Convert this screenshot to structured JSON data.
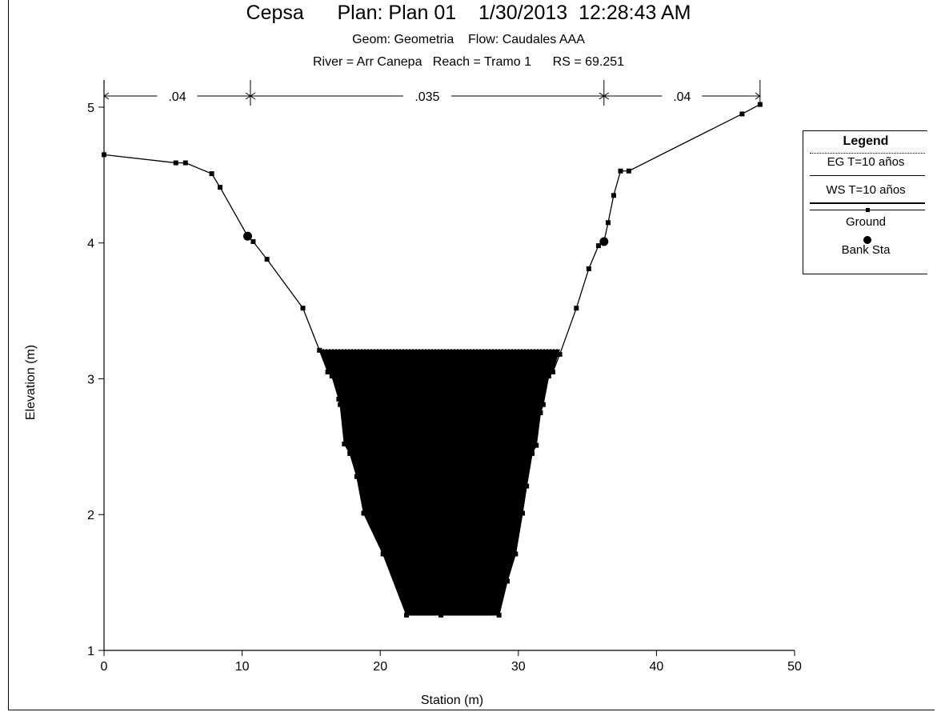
{
  "header": {
    "title": "Cepsa      Plan: Plan 01    1/30/2013  12:28:43 AM",
    "subtitle1": "Geom: Geometria    Flow: Caudales AAA",
    "subtitle2": "River = Arr Canepa   Reach = Tramo 1      RS = 69.251"
  },
  "legend": {
    "title": "Legend",
    "items": [
      "EG T=10 años",
      "WS T=10 años",
      "Ground",
      "Bank Sta"
    ]
  },
  "chart_data": {
    "type": "line",
    "xlabel": "Station (m)",
    "ylabel": "Elevation (m)",
    "xlim": [
      0,
      50
    ],
    "ylim": [
      1,
      5.2
    ],
    "xticks": [
      0,
      10,
      20,
      30,
      40,
      50
    ],
    "yticks": [
      1,
      2,
      3,
      4,
      5
    ],
    "manning": [
      {
        "label": ".04",
        "from": 0,
        "to": 10.6
      },
      {
        "label": ".035",
        "from": 10.6,
        "to": 36.2
      },
      {
        "label": ".04",
        "from": 36.2,
        "to": 47.5
      }
    ],
    "series": [
      {
        "name": "Ground",
        "x": [
          0,
          5.2,
          5.9,
          7.8,
          8.4,
          10.4,
          10.8,
          11.8,
          14.4,
          15.6,
          16.2,
          16.5,
          17.0,
          17.1,
          17.4,
          17.8,
          18.3,
          18.8,
          20.2,
          21.9,
          24.4,
          28.6,
          29.2,
          29.8,
          30.3,
          30.6,
          31.0,
          31.3,
          31.6,
          31.8,
          32.2,
          32.5,
          33.0,
          34.2,
          35.1,
          35.8,
          36.2,
          36.5,
          36.9,
          37.4,
          38.0,
          46.2,
          47.5
        ],
        "y": [
          4.65,
          4.59,
          4.59,
          4.51,
          4.41,
          4.05,
          4.01,
          3.88,
          3.52,
          3.21,
          3.05,
          3.02,
          2.85,
          2.81,
          2.52,
          2.45,
          2.28,
          2.01,
          1.71,
          1.26,
          1.26,
          1.26,
          1.51,
          1.71,
          2.01,
          2.21,
          2.45,
          2.51,
          2.75,
          2.81,
          3.02,
          3.05,
          3.18,
          3.52,
          3.81,
          3.98,
          4.01,
          4.15,
          4.35,
          4.53,
          4.53,
          4.95,
          5.02
        ]
      },
      {
        "name": "WS T=10 años",
        "x": [
          15.6,
          33.0
        ],
        "y": [
          3.21,
          3.21
        ]
      },
      {
        "name": "EG T=10 años",
        "x": [
          15.6,
          33.0
        ],
        "y": [
          3.21,
          3.21
        ]
      },
      {
        "name": "Bank Sta",
        "x": [
          10.4,
          36.2
        ],
        "y": [
          4.05,
          4.01
        ]
      }
    ]
  }
}
